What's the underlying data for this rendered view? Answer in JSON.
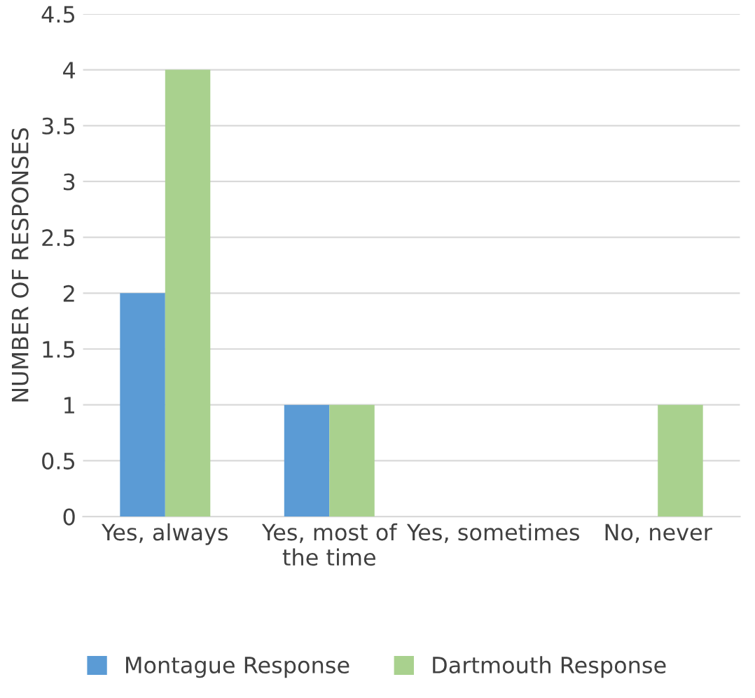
{
  "chart_data": {
    "type": "bar",
    "ylabel": "NUMBER OF RESPONSES",
    "categories": [
      "Yes, always",
      "Yes, most of the time",
      "Yes, sometimes",
      "No, never"
    ],
    "series": [
      {
        "name": "Montague Response",
        "color": "#5b9bd5",
        "values": [
          2,
          1,
          0,
          0
        ]
      },
      {
        "name": "Dartmouth Response",
        "color": "#a9d18e",
        "values": [
          4,
          1,
          0,
          1
        ]
      }
    ],
    "ylim": [
      0,
      4.5
    ],
    "yticks": [
      0,
      0.5,
      1,
      1.5,
      2,
      2.5,
      3,
      3.5,
      4,
      4.5
    ],
    "grid": "y",
    "legend": "bottom"
  }
}
